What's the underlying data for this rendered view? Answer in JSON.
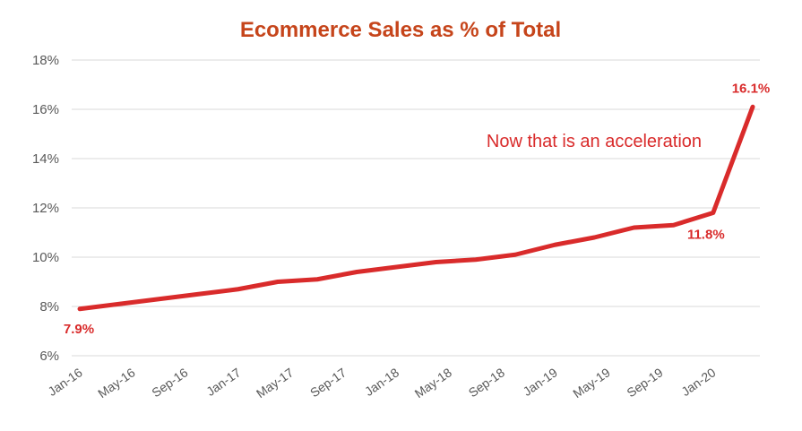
{
  "chart_data": {
    "type": "line",
    "title": "Ecommerce Sales as % of Total",
    "xlabel": "",
    "ylabel": "",
    "ylim": [
      6,
      18
    ],
    "yticks": [
      "6%",
      "8%",
      "10%",
      "12%",
      "14%",
      "16%",
      "18%"
    ],
    "ytick_values": [
      6,
      8,
      10,
      12,
      14,
      16,
      18
    ],
    "x_tick_labels": [
      "Jan-16",
      "May-16",
      "Sep-16",
      "Jan-17",
      "May-17",
      "Sep-17",
      "Jan-18",
      "May-18",
      "Sep-18",
      "Jan-19",
      "May-19",
      "Sep-19",
      "Jan-20"
    ],
    "x": [
      "Jan-16",
      "Apr-16",
      "Jul-16",
      "Oct-16",
      "Jan-17",
      "Apr-17",
      "Jul-17",
      "Oct-17",
      "Jan-18",
      "Apr-18",
      "Jul-18",
      "Oct-18",
      "Jan-19",
      "Apr-19",
      "Jul-19",
      "Oct-19",
      "Jan-20",
      "Apr-20"
    ],
    "series": [
      {
        "values": [
          7.9,
          8.1,
          8.3,
          8.5,
          8.7,
          9.0,
          9.1,
          9.4,
          9.6,
          9.8,
          9.9,
          10.1,
          10.5,
          10.8,
          11.2,
          11.3,
          11.8,
          16.1
        ]
      }
    ],
    "data_labels": [
      {
        "index": 0,
        "text": "7.9%"
      },
      {
        "index": 16,
        "text": "11.8%"
      },
      {
        "index": 17,
        "text": "16.1%"
      }
    ],
    "annotation": "Now that is an acceleration",
    "grid": true,
    "legend": "none",
    "colors": {
      "title": "#C6451B",
      "line": "#D92B2B",
      "labels": "#D92B2B",
      "grid": "#D9D9D9",
      "ticks": "#595959"
    }
  }
}
